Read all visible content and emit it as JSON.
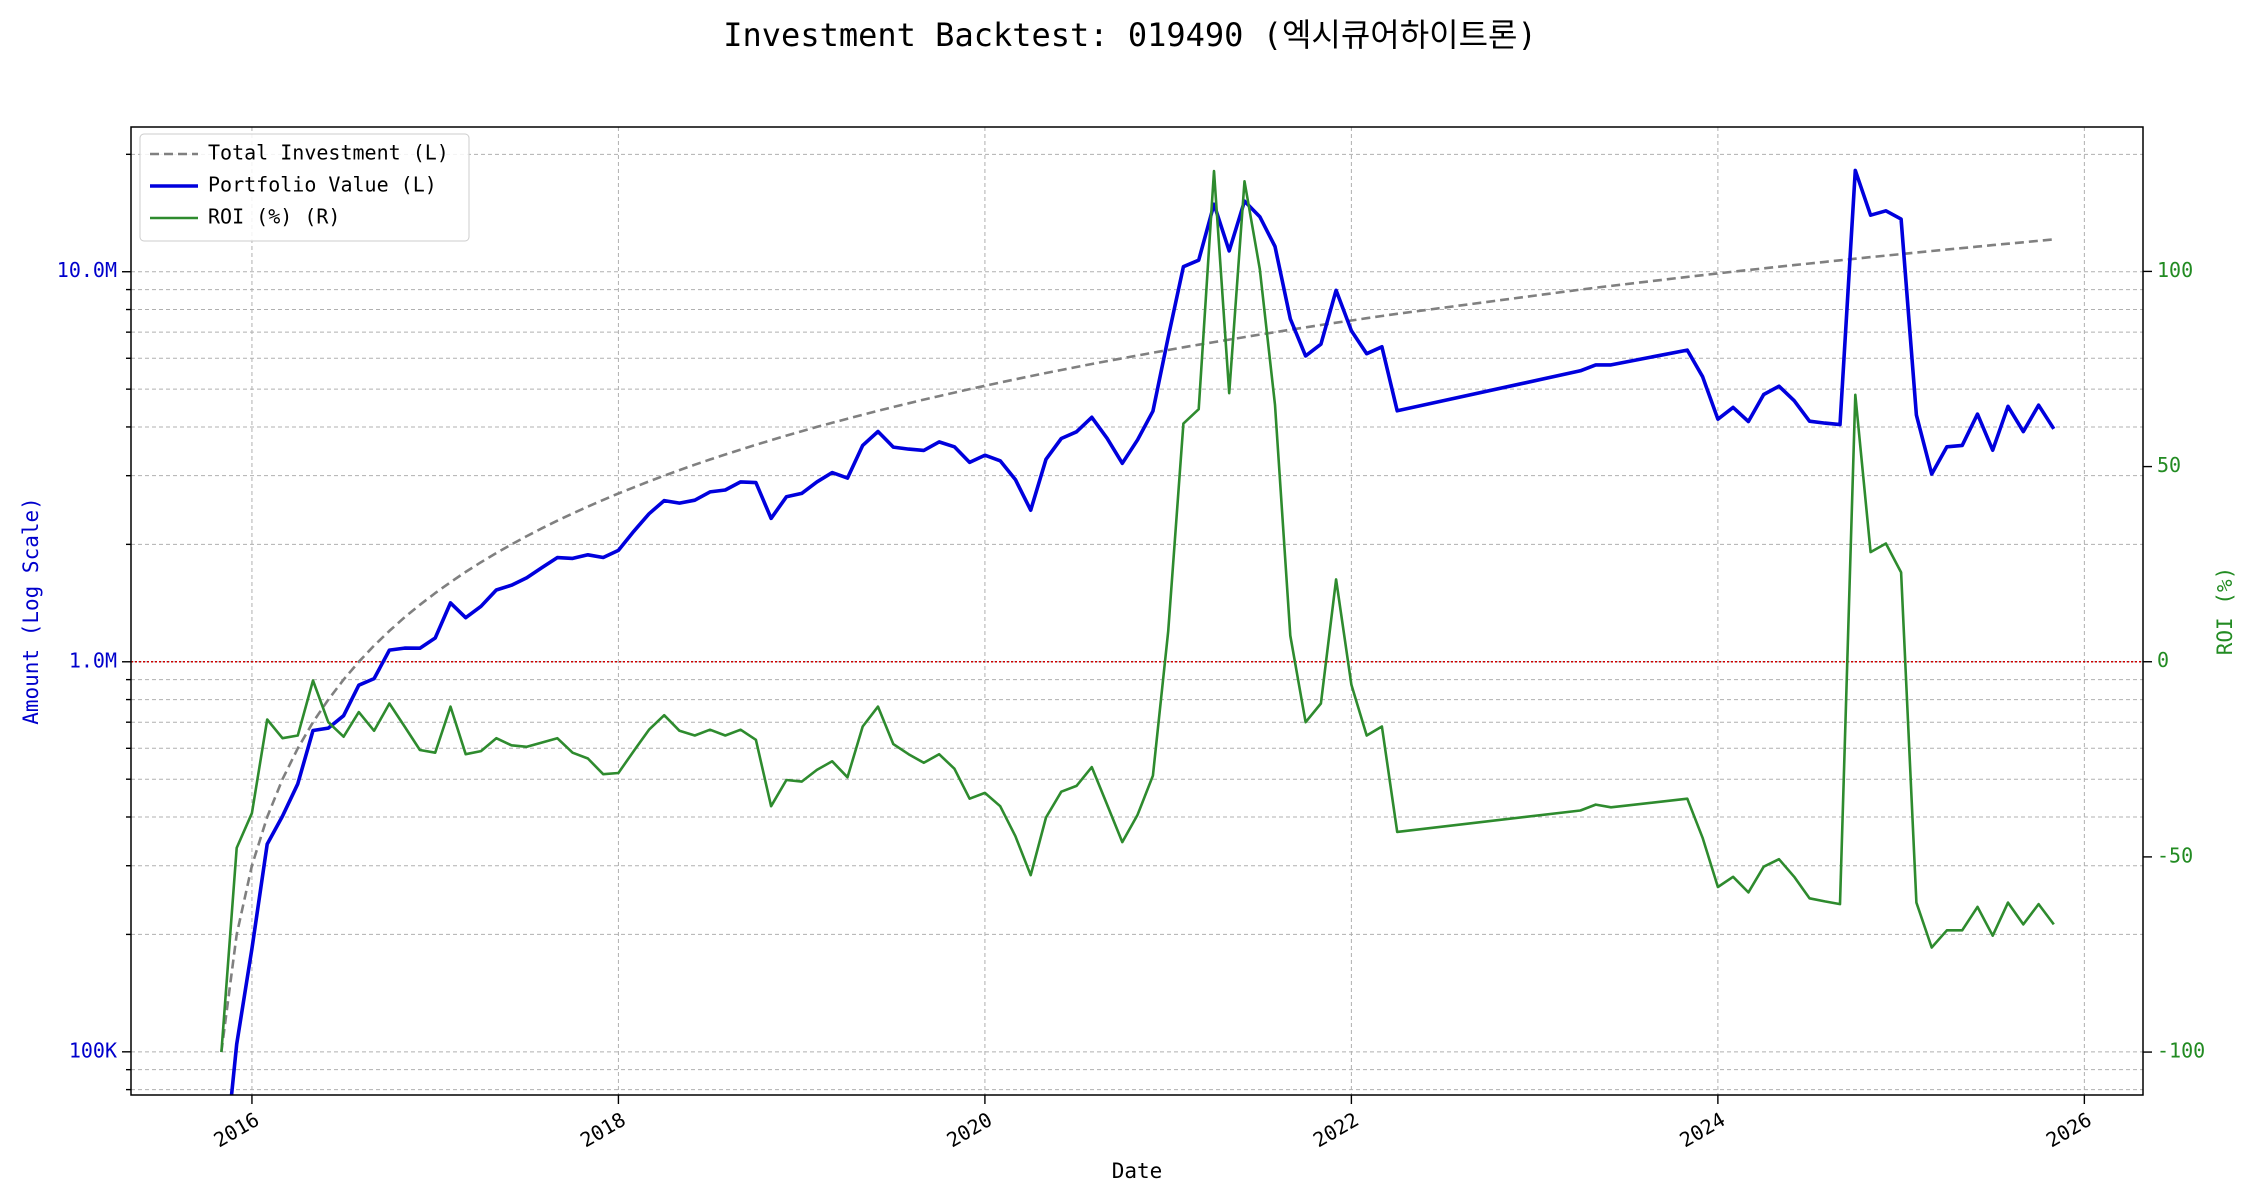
{
  "chart_data": {
    "type": "line",
    "title": "Investment Backtest: 019490 (엑시큐어하이트론)",
    "xlabel": "Date",
    "ylabel": "Amount (Log Scale)",
    "y2label": "ROI (%)",
    "ylog": true,
    "grid": true,
    "legend": "upper left",
    "ylabel_color": "#0000cc",
    "y2label_color": "#228b22",
    "hline": {
      "value": 1000000,
      "color": "#cc0000"
    },
    "xlim": [
      2015.34,
      2026.32
    ],
    "xticks": [
      2016,
      2018,
      2020,
      2022,
      2024,
      2026
    ],
    "ylim": [
      77500,
      23500000
    ],
    "yticks": [
      {
        "value": 100000,
        "label": "100K"
      },
      {
        "value": 1000000,
        "label": "1.0M"
      },
      {
        "value": 10000000,
        "label": "10.0M"
      }
    ],
    "y_minor_ticks": [
      80000,
      90000,
      200000,
      300000,
      400000,
      500000,
      600000,
      700000,
      800000,
      900000,
      2000000,
      3000000,
      4000000,
      5000000,
      6000000,
      7000000,
      8000000,
      9000000,
      20000000
    ],
    "y2lim": [
      -111,
      137
    ],
    "y2ticks": [
      -100,
      -50,
      0,
      50,
      100
    ],
    "x": [
      "2015-11",
      "2015-12",
      "2016-01",
      "2016-02",
      "2016-03",
      "2016-04",
      "2016-05",
      "2016-06",
      "2016-07",
      "2016-08",
      "2016-09",
      "2016-10",
      "2016-11",
      "2016-12",
      "2017-01",
      "2017-02",
      "2017-03",
      "2017-04",
      "2017-05",
      "2017-06",
      "2017-07",
      "2017-08",
      "2017-09",
      "2017-10",
      "2017-11",
      "2017-12",
      "2018-01",
      "2018-02",
      "2018-03",
      "2018-04",
      "2018-05",
      "2018-06",
      "2018-07",
      "2018-08",
      "2018-09",
      "2018-10",
      "2018-11",
      "2018-12",
      "2019-01",
      "2019-02",
      "2019-03",
      "2019-04",
      "2019-05",
      "2019-06",
      "2019-07",
      "2019-08",
      "2019-09",
      "2019-10",
      "2019-11",
      "2019-12",
      "2020-01",
      "2020-02",
      "2020-03",
      "2020-04",
      "2020-05",
      "2020-06",
      "2020-07",
      "2020-08",
      "2020-09",
      "2020-10",
      "2020-11",
      "2020-12",
      "2021-01",
      "2021-02",
      "2021-03",
      "2021-04",
      "2021-05",
      "2021-06",
      "2021-07",
      "2021-08",
      "2021-09",
      "2021-10",
      "2021-11",
      "2021-12",
      "2022-01",
      "2022-02",
      "2022-03",
      "2022-04",
      "2023-04",
      "2023-05",
      "2023-06",
      "2023-11",
      "2023-12",
      "2024-01",
      "2024-02",
      "2024-03",
      "2024-04",
      "2024-05",
      "2024-06",
      "2024-07",
      "2024-08",
      "2024-09",
      "2024-10",
      "2024-11",
      "2024-12",
      "2025-01",
      "2025-02",
      "2025-03",
      "2025-04",
      "2025-05",
      "2025-06",
      "2025-07",
      "2025-08",
      "2025-09",
      "2025-10",
      "2025-11"
    ],
    "series": [
      {
        "name": "Total Investment (L)",
        "color": "#808080",
        "dash": true,
        "axis": "y",
        "values": [
          100000,
          200000,
          300000,
          400000,
          500000,
          600000,
          700000,
          800000,
          900000,
          1000000,
          1100000,
          1200000,
          1300000,
          1400000,
          1500000,
          1600000,
          1700000,
          1800000,
          1900000,
          2000000,
          2100000,
          2200000,
          2300000,
          2400000,
          2500000,
          2600000,
          2700000,
          2800000,
          2900000,
          3000000,
          3100000,
          3200000,
          3300000,
          3400000,
          3500000,
          3600000,
          3700000,
          3800000,
          3900000,
          4000000,
          4100000,
          4200000,
          4300000,
          4400000,
          4500000,
          4600000,
          4700000,
          4800000,
          4900000,
          5000000,
          5100000,
          5200000,
          5300000,
          5400000,
          5500000,
          5600000,
          5700000,
          5800000,
          5900000,
          6000000,
          6100000,
          6200000,
          6300000,
          6400000,
          6500000,
          6600000,
          6700000,
          6800000,
          6900000,
          7000000,
          7100000,
          7200000,
          7300000,
          7400000,
          7500000,
          7600000,
          7700000,
          7800000,
          9000000,
          9100000,
          9200000,
          9700000,
          9800000,
          9900000,
          10000000,
          10100000,
          10200000,
          10300000,
          10400000,
          10500000,
          10600000,
          10700000,
          10800000,
          10900000,
          11000000,
          11100000,
          11200000,
          11300000,
          11400000,
          11500000,
          11600000,
          11700000,
          11800000,
          11900000,
          12000000,
          12100000
        ]
      },
      {
        "name": "Portfolio Value (L)",
        "color": "#0000dd",
        "dash": false,
        "axis": "y",
        "values": [
          0,
          104600,
          183600,
          340800,
          402000,
          486600,
          666400,
          676000,
          727200,
          871000,
          905300,
          1071600,
          1084200,
          1083600,
          1150500,
          1416000,
          1297100,
          1387800,
          1527600,
          1572000,
          1642200,
          1744600,
          1849200,
          1840800,
          1880000,
          1851200,
          1930500,
          2158800,
          2395400,
          2589000,
          2551300,
          2595200,
          2725800,
          2757400,
          2891000,
          2880000,
          2331000,
          2648600,
          2702700,
          2892000,
          3054500,
          2956800,
          3586200,
          3894000,
          3550500,
          3509800,
          3482700,
          3662400,
          3557400,
          3245000,
          3386400,
          3276000,
          2930900,
          2446200,
          3305500,
          3735200,
          3887400,
          4234000,
          3740600,
          3228000,
          3708800,
          4389600,
          6791400,
          10304000,
          10705500,
          14896200,
          11309600,
          15170800,
          13841400,
          11606000,
          7575700,
          6084000,
          6518900,
          8961400,
          7057500,
          6163600,
          6421800,
          4399200,
          5571000,
          5769400,
          5768400,
          6295300,
          5380200,
          4187700,
          4490000,
          4130900,
          4845000,
          5088200,
          4669600,
          4137000,
          4091600,
          4055300,
          18187200,
          13962900,
          14333000,
          13641900,
          4289600,
          3028400,
          3556800,
          3588000,
          4315200,
          3486600,
          4519400,
          3891300,
          4548000,
          3956700
        ]
      },
      {
        "name": "ROI (%) (R)",
        "color": "#2e8b2e",
        "dash": false,
        "axis": "y2",
        "values": [
          -100,
          -47.7,
          -38.8,
          -14.8,
          -19.6,
          -18.9,
          -4.8,
          -15.5,
          -19.2,
          -12.9,
          -17.7,
          -10.7,
          -16.6,
          -22.6,
          -23.3,
          -11.5,
          -23.7,
          -22.9,
          -19.6,
          -21.4,
          -21.8,
          -20.7,
          -19.6,
          -23.3,
          -24.8,
          -28.8,
          -28.5,
          -22.9,
          -17.4,
          -13.7,
          -17.7,
          -18.9,
          -17.4,
          -18.9,
          -17.4,
          -20.0,
          -37.0,
          -30.3,
          -30.7,
          -27.7,
          -25.5,
          -29.6,
          -16.6,
          -11.5,
          -21.1,
          -23.7,
          -25.9,
          -23.7,
          -27.4,
          -35.1,
          -33.6,
          -37.0,
          -44.7,
          -54.7,
          -39.9,
          -33.3,
          -31.8,
          -27.0,
          -36.6,
          -46.2,
          -39.2,
          -29.2,
          7.8,
          61.0,
          64.7,
          125.7,
          68.8,
          123.1,
          100.6,
          65.8,
          6.7,
          -15.5,
          -10.7,
          21.1,
          -5.9,
          -18.9,
          -16.6,
          -43.6,
          -38.1,
          -36.6,
          -37.3,
          -35.1,
          -45.1,
          -57.7,
          -55.1,
          -59.1,
          -52.5,
          -50.6,
          -55.1,
          -60.6,
          -61.4,
          -62.1,
          68.4,
          28.1,
          30.3,
          22.9,
          -61.7,
          -73.2,
          -68.8,
          -68.8,
          -62.8,
          -70.2,
          -61.7,
          -67.3,
          -62.1,
          -67.3
        ]
      }
    ]
  }
}
